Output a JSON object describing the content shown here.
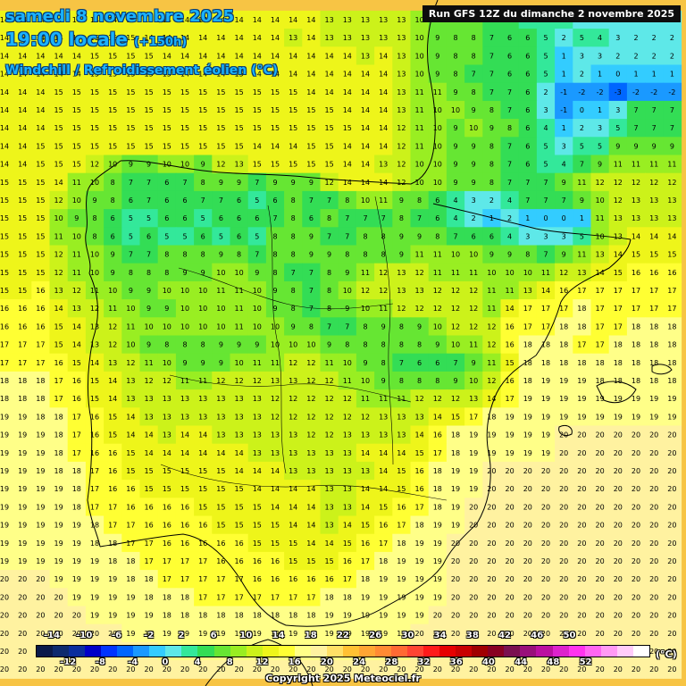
{
  "header": {
    "date_line": "samedi 8 novembre 2025",
    "time_local": "19:00 locale",
    "lead_time": "(+150h)",
    "parameter": "Windchill / Refroidissement éolien (°C)",
    "run_info": "Run GFS 12Z du dimanche 2 novembre 2025"
  },
  "legend": {
    "unit": "(°C)",
    "top_labels": [
      "-14",
      "-10",
      "-6",
      "-2",
      "2",
      "6",
      "10",
      "14",
      "18",
      "22",
      "26",
      "30",
      "34",
      "38",
      "42",
      "46",
      "50"
    ],
    "bottom_labels": [
      "-12",
      "-8",
      "-4",
      "0",
      "4",
      "8",
      "12",
      "16",
      "20",
      "24",
      "28",
      "32",
      "36",
      "40",
      "44",
      "48",
      "52"
    ],
    "colors": [
      "#0a1a4a",
      "#0d2a6e",
      "#0a2d9e",
      "#0000c8",
      "#0033ff",
      "#0066ff",
      "#1a99ff",
      "#33ccff",
      "#5ee8e8",
      "#33e89a",
      "#33dd55",
      "#66e633",
      "#99ee22",
      "#ccf21a",
      "#eef51a",
      "#ffff33",
      "#ffff88",
      "#fff2a0",
      "#ffe066",
      "#ffc133",
      "#ffa533",
      "#ff8a33",
      "#ff6a33",
      "#ff4433",
      "#ff1a1a",
      "#e60000",
      "#c80000",
      "#a00000",
      "#880022",
      "#7a1050",
      "#99107a",
      "#bb10a0",
      "#dd22cc",
      "#ff33ee",
      "#ff66f2",
      "#ff99f5",
      "#ffccfa",
      "#ffffff"
    ]
  },
  "copyright": "Copyright 2025 Meteociel.fr",
  "chart_data": {
    "type": "heatmap",
    "title": "Windchill / Refroidissement éolien (°C)",
    "columns": 38,
    "rows": [
      "14 14 14 14 14 14 14 14 14 14 14 14 14 14 14 14 14 14 13 13 13 13 13 10 9 8 8 7 6 5 5 4 3 2 2 2 2 2",
      "14 14 14 14 14 15 15 15 14 14 14 14 14 14 14 14 13 14 13 13 13 13 13 10 9 8 8 7 6 6 5 2 5 4 3 2 2 2",
      "14 14 14 14 14 15 15 15 15 14 14 14 14 14 14 14 14 14 14 14 13 14 13 10 9 8 8 7 6 6 5 1 3 3 2 2 2 2",
      "14 14 14 14 14 15 15 15 15 15 14 14 14 15 14 14 14 14 14 14 14 14 13 10 9 8 7 7 6 6 5 1 2 1 0 1 1 1",
      "14 14 14 15 15 15 15 15 15 15 15 15 15 15 15 15 15 14 14 14 14 14 13 11 11 9 8 7 7 6 2 -1 -2 -2 -3 -2 -2 -2",
      "14 14 14 15 15 15 15 15 15 15 15 15 15 15 15 15 15 15 15 14 14 14 13 11 10 10 9 8 7 6 3 -1 0 1 3 7 7 7",
      "14 14 14 15 15 15 15 15 15 15 15 15 15 15 15 15 15 15 15 15 14 14 12 11 10 9 10 9 8 6 4 1 2 3 5 7 7 7",
      "14 14 15 15 15 15 15 15 15 15 15 15 15 15 14 14 14 15 15 14 14 14 12 11 10 9 9 8 7 6 5 3 5 5 9 9 9 9",
      "14 14 15 15 15 12 10 9 9 10 10 9 12 13 15 15 15 15 15 14 14 13 12 10 10 9 9 8 7 6 5 4 7 9 11 11 11 11",
      "15 15 15 14 11 10 8 7 7 6 7 8 9 9 7 9 9 9 12 14 14 14 12 10 10 9 9 8 7 7 7 9 11 12 12 12 12 12",
      "15 15 15 12 10 9 8 6 7 6 6 7 7 6 5 6 8 7 7 8 10 11 9 8 6 4 3 2 4 7 7 7 9 10 12 13 13 13",
      "15 15 15 10 9 8 6 5 5 6 6 5 6 6 6 7 8 6 8 7 7 7 8 7 6 4 2 1 2 1 0 0 1 11 13 13 13 13",
      "15 15 15 11 10 8 6 5 6 5 5 6 5 6 5 8 8 9 7 7 8 8 9 9 8 7 6 6 4 3 3 3 5 10 13 14 14 14",
      "15 15 15 12 11 10 9 7 7 8 8 8 9 8 7 8 8 9 9 8 8 8 9 11 11 10 10 9 9 8 7 9 11 13 14 15 15 15",
      "15 15 15 12 11 10 9 8 8 8 9 9 10 10 9 8 7 7 8 9 11 12 13 12 11 11 11 10 10 10 11 12 13 14 15 16 16 16",
      "15 15 16 13 12 11 10 9 9 10 10 10 11 11 10 9 8 7 8 10 12 12 13 13 12 12 12 11 11 13 14 16 17 17 17 17 17 17",
      "16 16 16 14 13 12 11 10 9 9 10 10 10 11 10 9 8 7 8 9 10 11 12 12 12 12 12 11 14 17 17 17 18 17 17 17 17 17",
      "16 16 16 15 14 13 12 11 10 10 10 10 10 11 10 10 9 8 7 7 8 9 8 9 10 12 12 12 16 17 17 18 18 17 17 18 18 18",
      "17 17 17 15 14 13 12 10 9 8 8 8 9 9 9 10 10 10 9 8 8 8 8 8 9 10 11 12 16 18 18 18 17 17 18 18 18 18",
      "17 17 17 16 15 14 13 12 11 10 9 9 9 10 11 11 12 12 11 10 9 8 7 6 6 7 9 11 15 18 18 18 18 18 18 18 18 18",
      "18 18 18 17 16 15 14 13 12 12 11 11 12 12 12 13 13 12 12 11 10 9 8 8 8 9 10 12 16 18 19 19 19 18 18 18 18 18",
      "18 18 18 17 16 15 14 13 13 13 13 13 13 13 13 12 12 12 12 12 11 11 11 12 12 12 13 14 17 19 19 19 19 19 19 19 19 19",
      "19 19 18 18 17 16 15 14 13 13 13 13 13 13 13 12 12 12 12 12 12 13 13 13 14 15 17 18 19 19 19 19 19 19 19 19 19 19",
      "19 19 19 18 17 16 15 14 14 13 14 14 13 13 13 13 13 12 12 13 13 13 13 14 16 18 19 19 19 19 19 20 20 20 20 20 20 20",
      "19 19 19 18 17 16 16 15 14 14 14 14 14 14 13 13 13 13 13 13 14 14 14 15 17 18 19 19 19 19 19 20 20 20 20 20 20 20",
      "19 19 19 18 18 17 16 15 15 15 15 15 15 14 14 14 13 13 13 13 13 14 15 16 18 19 19 20 20 20 20 20 20 20 20 20 20 20",
      "19 19 19 19 18 17 16 16 15 15 15 15 15 15 14 14 14 14 13 13 14 14 15 16 18 19 19 20 20 20 20 20 20 20 20 20 20 20",
      "19 19 19 19 18 17 17 16 16 16 16 15 15 15 15 14 14 14 13 13 14 15 16 17 18 19 20 20 20 20 20 20 20 20 20 20 20 20",
      "19 19 19 19 19 18 17 17 16 16 16 16 15 15 15 15 14 14 13 14 15 16 17 18 19 19 20 20 20 20 20 20 20 20 20 20 20 20",
      "19 19 19 19 19 18 18 17 17 16 16 16 16 16 15 15 15 14 14 15 16 17 18 19 19 20 20 20 20 20 20 20 20 20 20 20 20 20",
      "19 19 19 19 19 19 18 18 17 17 17 17 16 16 16 16 15 15 15 16 17 18 19 19 19 20 20 20 20 20 20 20 20 20 20 20 20 20",
      "20 20 20 19 19 19 19 18 18 17 17 17 17 17 16 16 16 16 16 17 18 19 19 19 19 20 20 20 20 20 20 20 20 20 20 20 20 20",
      "20 20 20 20 19 19 19 19 18 18 18 17 17 17 17 17 17 17 18 18 19 19 19 19 19 20 20 20 20 20 20 20 20 20 20 20 20 20",
      "20 20 20 20 20 19 19 19 19 18 18 18 18 18 18 18 18 18 19 19 19 19 19 19 20 20 20 20 20 20 20 20 20 20 20 20 20 20",
      "20 20 20 20 20 20 20 19 19 19 19 19 19 19 19 19 19 19 19 19 19 19 19 20 20 20 20 20 20 20 20 20 20 20 20 20 20 20",
      "20 20 20 20 20 20 20 20 20 19 19 19 19 19 19 19 19 19 19 19 19 19 19 20 20 20 20 20 20 20 20 20 20 20 20 20 20 20",
      "20 20 20 20 20 20 20 20 20 20 20 20 20 20 20 20 20 20 20 20 20 20 20 20 20 20 20 20 20 20 20 20 20 20 20 20 20 20"
    ],
    "color_scale": {
      "min": -14,
      "max": 52,
      "step": 2
    },
    "legend_placement": "bottom"
  }
}
